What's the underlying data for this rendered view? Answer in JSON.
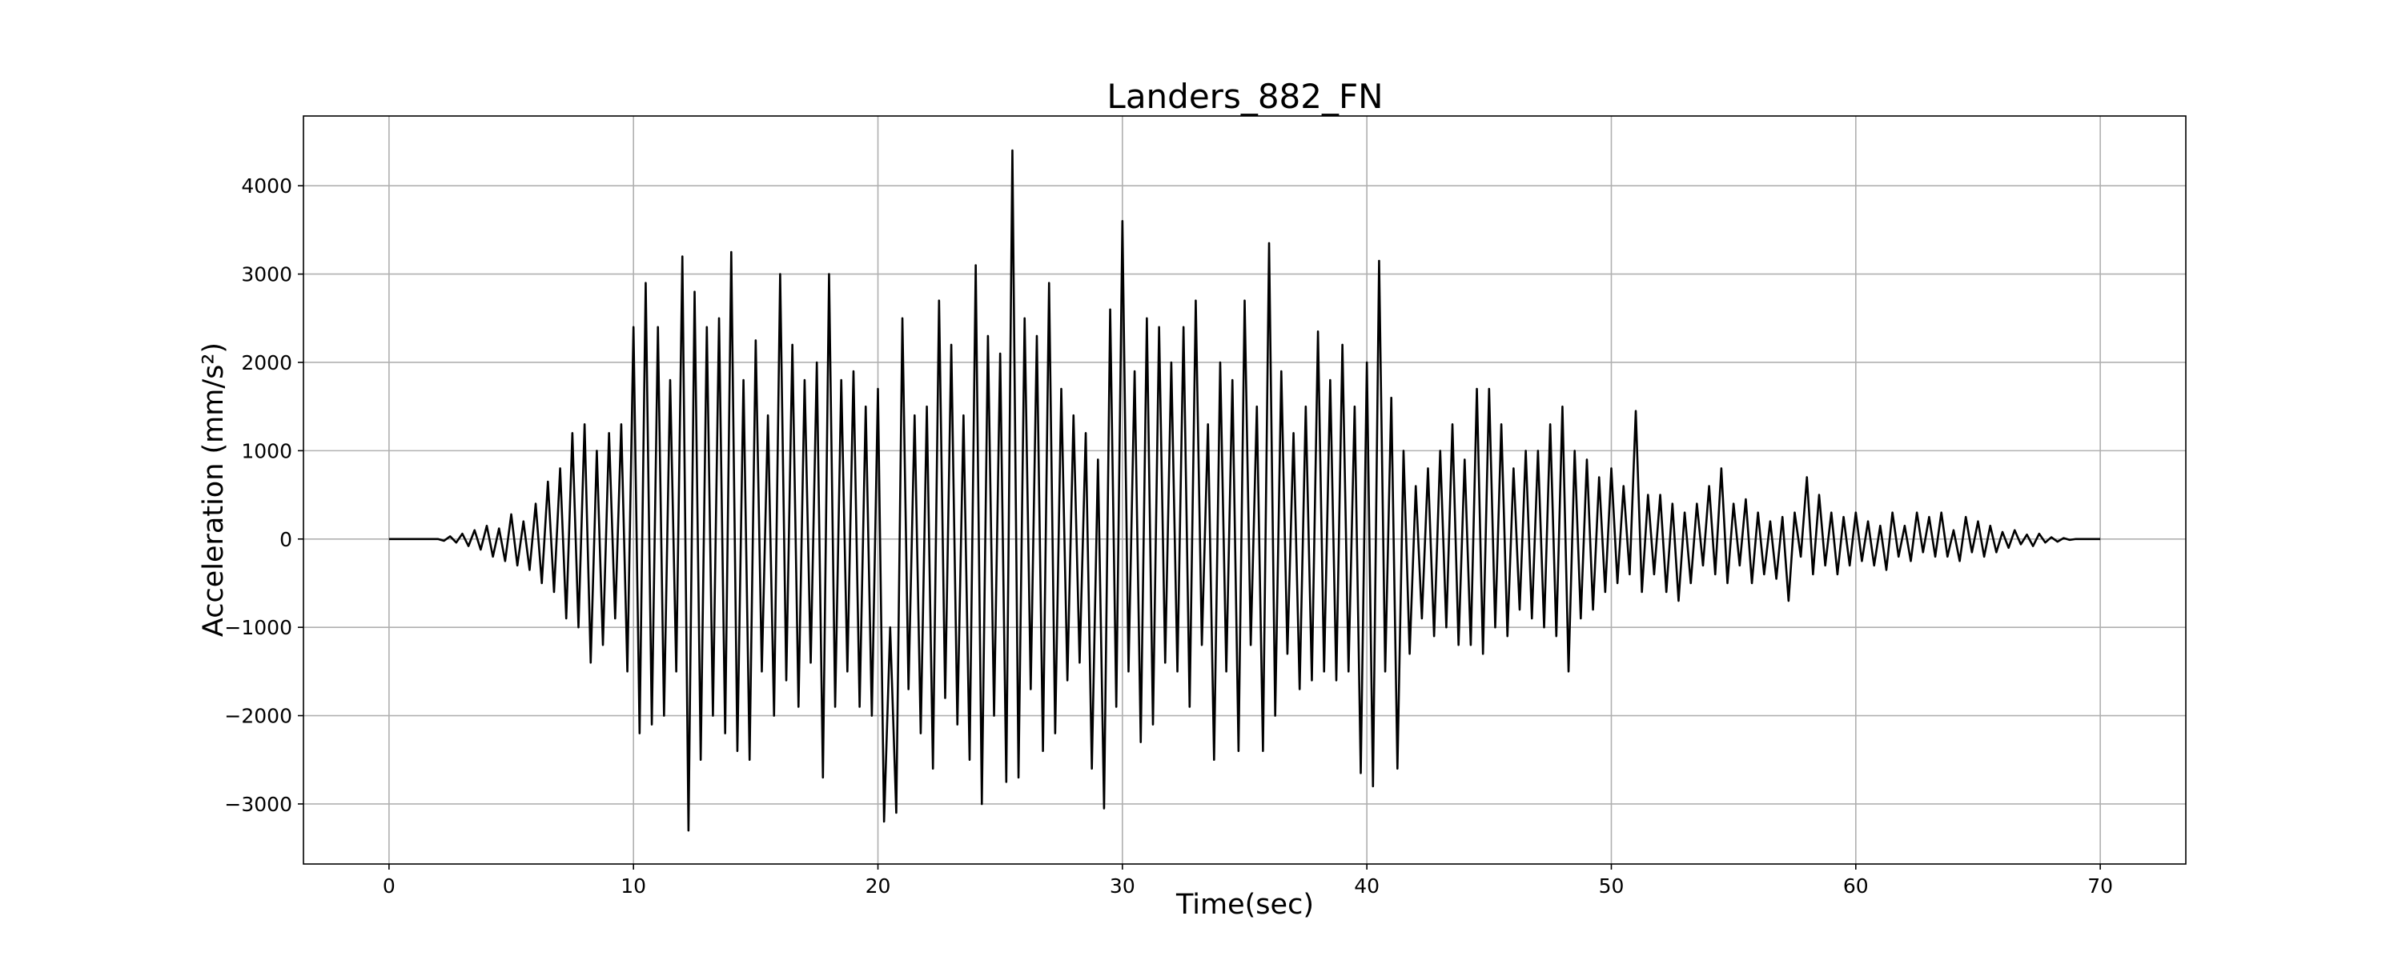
{
  "chart_data": {
    "type": "line",
    "title": "Landers_882_FN",
    "x_label": "Time(sec)",
    "y_label": "Acceleration (mm/s²)",
    "color": "#000000",
    "grid": true,
    "xlim": [
      -3.5,
      73.5
    ],
    "ylim": [
      -3680,
      4790
    ],
    "xticks": [
      0,
      10,
      20,
      30,
      40,
      50,
      60,
      70
    ],
    "yticks": [
      {
        "value": -3000,
        "label": "−3000"
      },
      {
        "value": -2000,
        "label": "−2000"
      },
      {
        "value": -1000,
        "label": "−1000"
      },
      0,
      1000,
      2000,
      3000,
      4000
    ],
    "x": [
      0,
      0.25,
      0.5,
      0.75,
      1,
      1.25,
      1.5,
      1.75,
      2,
      2.25,
      2.5,
      2.75,
      3,
      3.25,
      3.5,
      3.75,
      4,
      4.25,
      4.5,
      4.75,
      5,
      5.25,
      5.5,
      5.75,
      6,
      6.25,
      6.5,
      6.75,
      7,
      7.25,
      7.5,
      7.75,
      8,
      8.25,
      8.5,
      8.75,
      9,
      9.25,
      9.5,
      9.75,
      10,
      10.25,
      10.5,
      10.75,
      11,
      11.25,
      11.5,
      11.75,
      12,
      12.25,
      12.5,
      12.75,
      13,
      13.25,
      13.5,
      13.75,
      14,
      14.25,
      14.5,
      14.75,
      15,
      15.25,
      15.5,
      15.75,
      16,
      16.25,
      16.5,
      16.75,
      17,
      17.25,
      17.5,
      17.75,
      18,
      18.25,
      18.5,
      18.75,
      19,
      19.25,
      19.5,
      19.75,
      20,
      20.25,
      20.5,
      20.75,
      21,
      21.25,
      21.5,
      21.75,
      22,
      22.25,
      22.5,
      22.75,
      23,
      23.25,
      23.5,
      23.75,
      24,
      24.25,
      24.5,
      24.75,
      25,
      25.25,
      25.5,
      25.75,
      26,
      26.25,
      26.5,
      26.75,
      27,
      27.25,
      27.5,
      27.75,
      28,
      28.25,
      28.5,
      28.75,
      29,
      29.25,
      29.5,
      29.75,
      30,
      30.25,
      30.5,
      30.75,
      31,
      31.25,
      31.5,
      31.75,
      32,
      32.25,
      32.5,
      32.75,
      33,
      33.25,
      33.5,
      33.75,
      34,
      34.25,
      34.5,
      34.75,
      35,
      35.25,
      35.5,
      35.75,
      36,
      36.25,
      36.5,
      36.75,
      37,
      37.25,
      37.5,
      37.75,
      38,
      38.25,
      38.5,
      38.75,
      39,
      39.25,
      39.5,
      39.75,
      40,
      40.25,
      40.5,
      40.75,
      41,
      41.25,
      41.5,
      41.75,
      42,
      42.25,
      42.5,
      42.75,
      43,
      43.25,
      43.5,
      43.75,
      44,
      44.25,
      44.5,
      44.75,
      45,
      45.25,
      45.5,
      45.75,
      46,
      46.25,
      46.5,
      46.75,
      47,
      47.25,
      47.5,
      47.75,
      48,
      48.25,
      48.5,
      48.75,
      49,
      49.25,
      49.5,
      49.75,
      50,
      50.25,
      50.5,
      50.75,
      51,
      51.25,
      51.5,
      51.75,
      52,
      52.25,
      52.5,
      52.75,
      53,
      53.25,
      53.5,
      53.75,
      54,
      54.25,
      54.5,
      54.75,
      55,
      55.25,
      55.5,
      55.75,
      56,
      56.25,
      56.5,
      56.75,
      57,
      57.25,
      57.5,
      57.75,
      58,
      58.25,
      58.5,
      58.75,
      59,
      59.25,
      59.5,
      59.75,
      60,
      60.25,
      60.5,
      60.75,
      61,
      61.25,
      61.5,
      61.75,
      62,
      62.25,
      62.5,
      62.75,
      63,
      63.25,
      63.5,
      63.75,
      64,
      64.25,
      64.5,
      64.75,
      65,
      65.25,
      65.5,
      65.75,
      66,
      66.25,
      66.5,
      66.75,
      67,
      67.25,
      67.5,
      67.75,
      68,
      68.25,
      68.5,
      68.75,
      69,
      69.25,
      69.5,
      69.75,
      70
    ],
    "values": [
      0,
      0,
      0,
      0,
      0,
      0,
      0,
      0,
      0,
      -20,
      30,
      -40,
      60,
      -80,
      100,
      -120,
      150,
      -200,
      120,
      -250,
      280,
      -300,
      200,
      -350,
      400,
      -500,
      650,
      -600,
      800,
      -900,
      1200,
      -1000,
      1300,
      -1400,
      1000,
      -1200,
      1200,
      -900,
      1300,
      -1500,
      2400,
      -2200,
      2900,
      -2100,
      2400,
      -2000,
      1800,
      -1500,
      3200,
      -3300,
      2800,
      -2500,
      2400,
      -2000,
      2500,
      -2200,
      3250,
      -2400,
      1800,
      -2500,
      2250,
      -1500,
      1400,
      -2000,
      3000,
      -1600,
      2200,
      -1900,
      1800,
      -1400,
      2000,
      -2700,
      3000,
      -1900,
      1800,
      -1500,
      1900,
      -1900,
      1500,
      -2000,
      1700,
      -3200,
      -1000,
      -3100,
      2500,
      -1700,
      1400,
      -2200,
      1500,
      -2600,
      2700,
      -1800,
      2200,
      -2100,
      1400,
      -2500,
      3100,
      -3000,
      2300,
      -2000,
      2100,
      -2750,
      4400,
      -2700,
      2500,
      -1700,
      2300,
      -2400,
      2900,
      -2200,
      1700,
      -1600,
      1400,
      -1400,
      1200,
      -2600,
      900,
      -3050,
      2600,
      -1900,
      3600,
      -1500,
      1900,
      -2300,
      2500,
      -2100,
      2400,
      -1400,
      2000,
      -1500,
      2400,
      -1900,
      2700,
      -1200,
      1300,
      -2500,
      2000,
      -1500,
      1800,
      -2400,
      2700,
      -1200,
      1500,
      -2400,
      3350,
      -2000,
      1900,
      -1300,
      1200,
      -1700,
      1500,
      -1600,
      2350,
      -1500,
      1800,
      -1600,
      2200,
      -1500,
      1500,
      -2650,
      2000,
      -2800,
      3150,
      -1500,
      1600,
      -2600,
      1000,
      -1300,
      600,
      -900,
      800,
      -1100,
      1000,
      -1000,
      1300,
      -1200,
      900,
      -1200,
      1700,
      -1300,
      1700,
      -1000,
      1300,
      -1100,
      800,
      -800,
      1000,
      -900,
      1000,
      -1000,
      1300,
      -1100,
      1500,
      -1500,
      1000,
      -900,
      900,
      -800,
      700,
      -600,
      800,
      -500,
      600,
      -400,
      1450,
      -600,
      500,
      -400,
      500,
      -600,
      400,
      -700,
      300,
      -500,
      400,
      -300,
      600,
      -400,
      800,
      -500,
      400,
      -300,
      450,
      -500,
      300,
      -400,
      200,
      -450,
      250,
      -700,
      300,
      -200,
      700,
      -400,
      500,
      -300,
      300,
      -400,
      250,
      -300,
      300,
      -250,
      200,
      -300,
      150,
      -350,
      300,
      -200,
      150,
      -250,
      300,
      -150,
      250,
      -200,
      300,
      -200,
      100,
      -250,
      250,
      -150,
      200,
      -200,
      150,
      -150,
      80,
      -100,
      100,
      -60,
      50,
      -80,
      60,
      -40,
      20,
      -30,
      10,
      -10,
      0,
      0,
      0,
      0,
      0
    ]
  }
}
